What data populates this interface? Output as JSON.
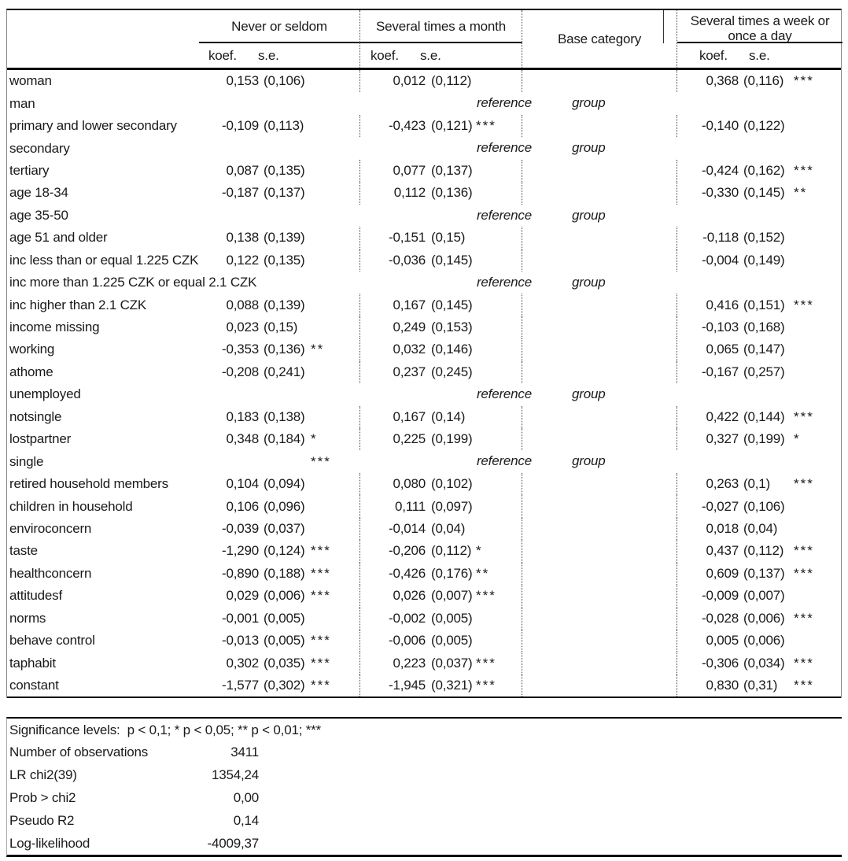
{
  "table": {
    "column_groups": [
      "Never or seldom",
      "Several times a month",
      "Base category",
      "Several times a week or once a day"
    ],
    "subheaders": {
      "koef": "koef.",
      "se": "s.e."
    },
    "rows": [
      {
        "label": "woman",
        "c1": {
          "koef": "0,153",
          "se": "(0,106)"
        },
        "c2": {
          "koef": "0,012",
          "se": "(0,112)"
        },
        "c3": {
          "koef": "0,368",
          "se": "(0,116)",
          "stars": "***"
        }
      },
      {
        "label": "man",
        "type": "reference",
        "reference": "reference",
        "group": "group"
      },
      {
        "label": "primary and lower secondary",
        "c1": {
          "koef": "-0,109",
          "se": "(0,113)"
        },
        "c2": {
          "koef": "-0,423",
          "se": "(0,121)",
          "stars": "***"
        },
        "c3": {
          "koef": "-0,140",
          "se": "(0,122)"
        }
      },
      {
        "label": "secondary",
        "type": "reference",
        "reference": "reference",
        "group": "group"
      },
      {
        "label": "tertiary",
        "c1": {
          "koef": "0,087",
          "se": "(0,135)"
        },
        "c2": {
          "koef": "0,077",
          "se": "(0,137)"
        },
        "c3": {
          "koef": "-0,424",
          "se": "(0,162)",
          "stars": "***"
        }
      },
      {
        "label": "age 18-34",
        "c1": {
          "koef": "-0,187",
          "se": "(0,137)"
        },
        "c2": {
          "koef": "0,112",
          "se": "(0,136)"
        },
        "c3": {
          "koef": "-0,330",
          "se": "(0,145)",
          "stars": "**"
        }
      },
      {
        "label": "age 35-50",
        "type": "reference",
        "reference": "reference",
        "group": "group"
      },
      {
        "label": "age 51 and older",
        "c1": {
          "koef": "0,138",
          "se": "(0,139)"
        },
        "c2": {
          "koef": "-0,151",
          "se": "(0,15)"
        },
        "c3": {
          "koef": "-0,118",
          "se": "(0,152)"
        }
      },
      {
        "label": "inc less than or equal 1.225 CZK",
        "c1": {
          "koef": "0,122",
          "se": "(0,135)"
        },
        "c2": {
          "koef": "-0,036",
          "se": "(0,145)"
        },
        "c3": {
          "koef": "-0,004",
          "se": "(0,149)"
        }
      },
      {
        "label": "inc more than 1.225 CZK or equal 2.1 CZK",
        "type": "reference",
        "reference": "reference",
        "group": "group"
      },
      {
        "label": "inc higher than 2.1 CZK",
        "c1": {
          "koef": "0,088",
          "se": "(0,139)"
        },
        "c2": {
          "koef": "0,167",
          "se": "(0,145)"
        },
        "c3": {
          "koef": "0,416",
          "se": "(0,151)",
          "stars": "***"
        }
      },
      {
        "label": "income missing",
        "c1": {
          "koef": "0,023",
          "se": "(0,15)"
        },
        "c2": {
          "koef": "0,249",
          "se": "(0,153)"
        },
        "c3": {
          "koef": "-0,103",
          "se": "(0,168)"
        }
      },
      {
        "label": "working",
        "c1": {
          "koef": "-0,353",
          "se": "(0,136)",
          "stars": "**"
        },
        "c2": {
          "koef": "0,032",
          "se": "(0,146)"
        },
        "c3": {
          "koef": "0,065",
          "se": "(0,147)"
        }
      },
      {
        "label": "athome",
        "c1": {
          "koef": "-0,208",
          "se": "(0,241)"
        },
        "c2": {
          "koef": "0,237",
          "se": "(0,245)"
        },
        "c3": {
          "koef": "-0,167",
          "se": "(0,257)"
        }
      },
      {
        "label": "unemployed",
        "type": "reference",
        "reference": "reference",
        "group": "group"
      },
      {
        "label": "notsingle",
        "c1": {
          "koef": "0,183",
          "se": "(0,138)"
        },
        "c2": {
          "koef": "0,167",
          "se": "(0,14)"
        },
        "c3": {
          "koef": "0,422",
          "se": "(0,144)",
          "stars": "***"
        }
      },
      {
        "label": "lostpartner",
        "c1": {
          "koef": "0,348",
          "se": "(0,184)",
          "stars": "*"
        },
        "c2": {
          "koef": "0,225",
          "se": "(0,199)"
        },
        "c3": {
          "koef": "0,327",
          "se": "(0,199)",
          "stars": "*"
        }
      },
      {
        "label": "single",
        "type": "reference",
        "reference": "reference",
        "group": "group",
        "c1": {
          "stars": "***"
        }
      },
      {
        "label": "retired household members",
        "c1": {
          "koef": "0,104",
          "se": "(0,094)"
        },
        "c2": {
          "koef": "0,080",
          "se": "(0,102)"
        },
        "c3": {
          "koef": "0,263",
          "se": "(0,1)",
          "stars": "***"
        }
      },
      {
        "label": "children in household",
        "c1": {
          "koef": "0,106",
          "se": "(0,096)"
        },
        "c2": {
          "koef": "0,111",
          "se": "(0,097)"
        },
        "c3": {
          "koef": "-0,027",
          "se": "(0,106)"
        }
      },
      {
        "label": "enviroconcern",
        "c1": {
          "koef": "-0,039",
          "se": "(0,037)"
        },
        "c2": {
          "koef": "-0,014",
          "se": "(0,04)"
        },
        "c3": {
          "koef": "0,018",
          "se": "(0,04)"
        }
      },
      {
        "label": "taste",
        "c1": {
          "koef": "-1,290",
          "se": "(0,124)",
          "stars": "***"
        },
        "c2": {
          "koef": "-0,206",
          "se": "(0,112)",
          "stars": "*"
        },
        "c3": {
          "koef": "0,437",
          "se": "(0,112)",
          "stars": "***"
        }
      },
      {
        "label": "healthconcern",
        "c1": {
          "koef": "-0,890",
          "se": "(0,188)",
          "stars": "***"
        },
        "c2": {
          "koef": "-0,426",
          "se": "(0,176)",
          "stars": "**"
        },
        "c3": {
          "koef": "0,609",
          "se": "(0,137)",
          "stars": "***"
        }
      },
      {
        "label": "attitudesf",
        "c1": {
          "koef": "0,029",
          "se": "(0,006)",
          "stars": "***"
        },
        "c2": {
          "koef": "0,026",
          "se": "(0,007)",
          "stars": "***"
        },
        "c3": {
          "koef": "-0,009",
          "se": "(0,007)"
        }
      },
      {
        "label": "norms",
        "c1": {
          "koef": "-0,001",
          "se": "(0,005)"
        },
        "c2": {
          "koef": "-0,002",
          "se": "(0,005)"
        },
        "c3": {
          "koef": "-0,028",
          "se": "(0,006)",
          "stars": "***"
        }
      },
      {
        "label": "behave control",
        "c1": {
          "koef": "-0,013",
          "se": "(0,005)",
          "stars": "***"
        },
        "c2": {
          "koef": "-0,006",
          "se": "(0,005)"
        },
        "c3": {
          "koef": "0,005",
          "se": "(0,006)"
        }
      },
      {
        "label": "taphabit",
        "c1": {
          "koef": "0,302",
          "se": "(0,035)",
          "stars": "***"
        },
        "c2": {
          "koef": "0,223",
          "se": "(0,037)",
          "stars": "***"
        },
        "c3": {
          "koef": "-0,306",
          "se": "(0,034)",
          "stars": "***"
        }
      },
      {
        "label": "constant",
        "c1": {
          "koef": "-1,577",
          "se": "(0,302)",
          "stars": "***"
        },
        "c2": {
          "koef": "-1,945",
          "se": "(0,321)",
          "stars": "***"
        },
        "c3": {
          "koef": "0,830",
          "se": "(0,31)",
          "stars": "***"
        }
      }
    ]
  },
  "footer": {
    "significance_note": "Significance levels:  p < 0,1; * p < 0,05; ** p < 0,01; ***",
    "stats": [
      {
        "label": "Number of observations",
        "value": "3411"
      },
      {
        "label": "LR chi2(39)",
        "value": "1354,24"
      },
      {
        "label": "Prob > chi2",
        "value": "0,00"
      },
      {
        "label": "Pseudo R2",
        "value": "0,14"
      },
      {
        "label": "Log-likelihood",
        "value": "-4009,37"
      }
    ]
  },
  "colors": {
    "background": "#ffffff",
    "text": "#1a1a1a",
    "rule": "#000000",
    "dotted_separator": "#444444",
    "side_border": "#888888"
  }
}
